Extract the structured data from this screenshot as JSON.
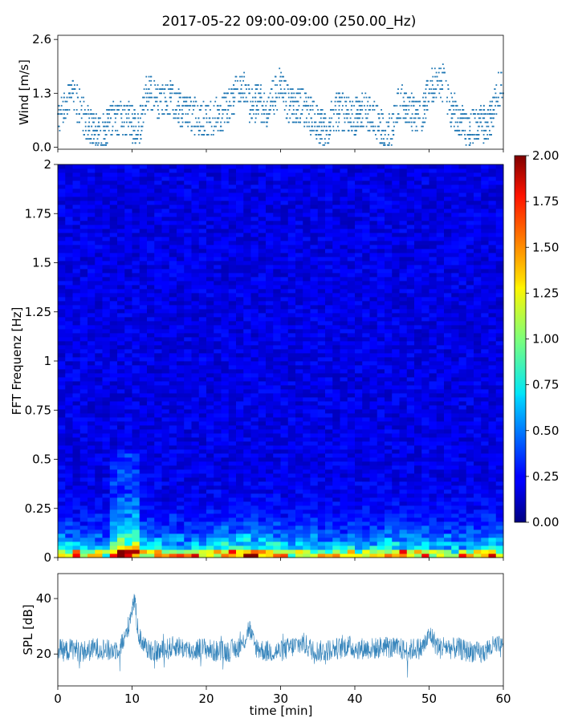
{
  "figure": {
    "title": "2017-05-22 09:00-09:00 (250.00_Hz)"
  },
  "chart_data": [
    {
      "type": "scatter",
      "name": "wind",
      "ylabel": "Wind [m/s]",
      "xlim": [
        0,
        60
      ],
      "ylim": [
        -0.05,
        2.7
      ],
      "yticks": [
        "0.0",
        "1.3",
        "2.6"
      ],
      "ytick_values": [
        0.0,
        1.3,
        2.6
      ],
      "x_profile": [
        0,
        1,
        2,
        3,
        4,
        5,
        6,
        7,
        8,
        9,
        10,
        11,
        12,
        13,
        14,
        15,
        16,
        17,
        18,
        19,
        20,
        21,
        22,
        23,
        24,
        25,
        26,
        27,
        28,
        29,
        30,
        31,
        32,
        33,
        34,
        35,
        36,
        37,
        38,
        39,
        40,
        41,
        42,
        43,
        44,
        45,
        46,
        47,
        48,
        49,
        50,
        51,
        52,
        53,
        54,
        55,
        56,
        57,
        58,
        59,
        60
      ],
      "y_profile": [
        0.8,
        1.1,
        1.2,
        0.9,
        0.6,
        0.4,
        0.3,
        0.6,
        0.7,
        0.7,
        0.6,
        0.5,
        1.3,
        1.2,
        1.1,
        1.2,
        1.0,
        0.8,
        0.8,
        0.7,
        0.7,
        0.7,
        0.8,
        1.0,
        1.3,
        1.4,
        1.0,
        1.1,
        0.9,
        1.2,
        1.5,
        1.0,
        1.0,
        1.0,
        0.8,
        0.6,
        0.4,
        0.8,
        0.9,
        0.8,
        0.7,
        0.9,
        0.8,
        0.6,
        0.3,
        0.4,
        1.1,
        1.0,
        0.8,
        0.7,
        1.4,
        1.6,
        1.5,
        0.9,
        0.7,
        0.4,
        0.5,
        0.6,
        0.5,
        1.2,
        1.6
      ],
      "color": "#1f77b4"
    },
    {
      "type": "heatmap",
      "name": "spectrogram",
      "ylabel": "FFT Frequenz [Hz]",
      "xlim": [
        0,
        60
      ],
      "ylim": [
        0,
        2
      ],
      "yticks": [
        "0",
        "0.25",
        "0.5",
        "0.75",
        "1",
        "1.25",
        "1.5",
        "1.75",
        "2"
      ],
      "ytick_values": [
        0,
        0.25,
        0.5,
        0.75,
        1,
        1.25,
        1.5,
        1.75,
        2
      ],
      "colormap": "jet",
      "clim": [
        0,
        2
      ],
      "colorbar_ticks": [
        "0.00",
        "0.25",
        "0.50",
        "0.75",
        "1.00",
        "1.25",
        "1.50",
        "1.75",
        "2.00"
      ],
      "colorbar_values": [
        0,
        0.25,
        0.5,
        0.75,
        1.0,
        1.25,
        1.5,
        1.75,
        2.0
      ],
      "background_level": 0.2,
      "low_frequency_levels_by_minute": [
        1.2,
        1.1,
        1.0,
        1.0,
        1.1,
        1.0,
        0.9,
        1.0,
        1.4,
        1.5,
        1.6,
        1.3,
        1.0,
        1.1,
        1.0,
        1.1,
        1.0,
        1.0,
        1.1,
        1.0,
        1.2,
        1.1,
        1.3,
        1.2,
        1.3,
        1.6,
        1.4,
        1.4,
        1.3,
        1.2,
        1.1,
        1.0,
        1.1,
        1.0,
        1.2,
        1.0,
        1.0,
        1.1,
        1.0,
        1.1,
        1.0,
        1.0,
        1.0,
        1.1,
        1.2,
        1.2,
        1.2,
        1.2,
        1.2,
        1.3,
        1.0,
        0.9,
        1.0,
        1.0,
        1.0,
        1.1,
        1.0,
        1.1,
        1.2,
        1.1
      ]
    },
    {
      "type": "line",
      "name": "spl",
      "ylabel": "SPL [dB]",
      "xlabel": "time [min]",
      "xlim": [
        0,
        60
      ],
      "ylim": [
        8.5,
        49
      ],
      "yticks": [
        "20",
        "40"
      ],
      "ytick_values": [
        20,
        40
      ],
      "xticks": [
        "0",
        "10",
        "20",
        "30",
        "40",
        "50",
        "60"
      ],
      "xtick_values": [
        0,
        10,
        20,
        30,
        40,
        50,
        60
      ],
      "x_profile": [
        0,
        1,
        2,
        3,
        4,
        5,
        6,
        7,
        8,
        9,
        9.5,
        10,
        10.3,
        10.6,
        11,
        12,
        13,
        14,
        15,
        16,
        17,
        18,
        19,
        20,
        21,
        22,
        23,
        24,
        25,
        25.8,
        26,
        26.5,
        27,
        28,
        29,
        30,
        31,
        32,
        33,
        34,
        35,
        36,
        37,
        38,
        39,
        40,
        41,
        42,
        43,
        44,
        45,
        46,
        47,
        48,
        49,
        49.7,
        50.2,
        50.8,
        51.5,
        52,
        53,
        54,
        55,
        56,
        57,
        58,
        59,
        60
      ],
      "y_profile": [
        22,
        21,
        22,
        21,
        21,
        22,
        22,
        21,
        22,
        25,
        30,
        37,
        40,
        33,
        26,
        22,
        21,
        21,
        22,
        23,
        22,
        21,
        22,
        22,
        21,
        21,
        21,
        22,
        24,
        30,
        27,
        23,
        22,
        21,
        21,
        21,
        22,
        23,
        24,
        22,
        21,
        21,
        22,
        22,
        23,
        22,
        22,
        22,
        22,
        23,
        22,
        22,
        21,
        22,
        22,
        25,
        27,
        24,
        22,
        23,
        22,
        22,
        21,
        21,
        20,
        22,
        23,
        22
      ],
      "color": "#1f77b4"
    }
  ]
}
